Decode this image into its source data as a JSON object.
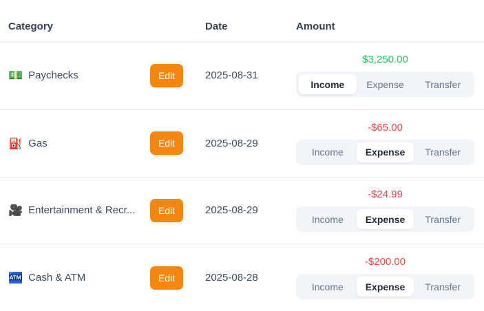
{
  "header": {
    "category": "Category",
    "date": "Date",
    "amount": "Amount"
  },
  "edit_label": "Edit",
  "segments": [
    "Income",
    "Expense",
    "Transfer"
  ],
  "rows": [
    {
      "icon": "💵",
      "icon_name": "banknote-icon",
      "category": "Paychecks",
      "date": "2025-08-31",
      "amount": "$3,250.00",
      "type": "income",
      "selected_segment": "Income"
    },
    {
      "icon": "⛽",
      "icon_name": "fuel-pump-icon",
      "category": "Gas",
      "date": "2025-08-29",
      "amount": "-$65.00",
      "type": "expense",
      "selected_segment": "Expense"
    },
    {
      "icon": "🎥",
      "icon_name": "movie-camera-icon",
      "category": "Entertainment & Recr...",
      "date": "2025-08-29",
      "amount": "-$24.99",
      "type": "expense",
      "selected_segment": "Expense"
    },
    {
      "icon": "🏧",
      "icon_name": "atm-icon",
      "category": "Cash & ATM",
      "date": "2025-08-28",
      "amount": "-$200.00",
      "type": "expense",
      "selected_segment": "Expense"
    }
  ],
  "colors": {
    "income_amount": "#22c55e",
    "expense_amount": "#ef4444",
    "edit_button": "#f7860f",
    "segment_bg": "#f1f4f8",
    "selected_segment_bg": "#ffffff",
    "header_text": "#334155",
    "body_text": "#3a4a5e",
    "muted_text": "#64748b",
    "divider": "#e5eaf0"
  }
}
